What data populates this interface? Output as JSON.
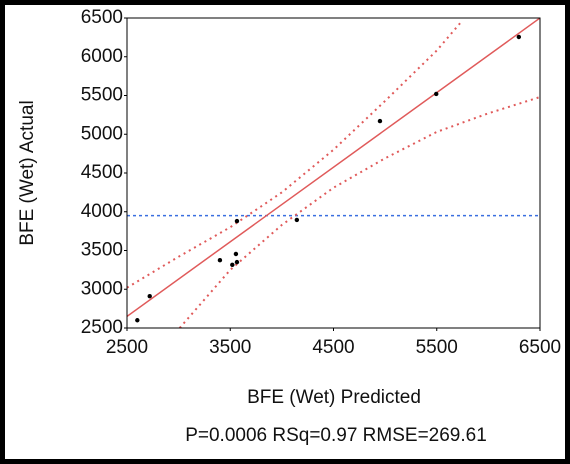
{
  "chart_data": {
    "type": "scatter",
    "xlabel": "BFE (Wet) Predicted",
    "ylabel": "BFE (Wet) Actual",
    "footer": "P=0.0006 RSq=0.97 RMSE=269.61",
    "x": [
      2600,
      2720,
      3400,
      3520,
      3565,
      3555,
      3565,
      4145,
      4950,
      5495,
      6295
    ],
    "values": [
      2600,
      2910,
      3375,
      3315,
      3350,
      3455,
      3880,
      3895,
      5170,
      5520,
      6255
    ],
    "color": "#000000",
    "fit_line": {
      "color": "#e05a5a",
      "x": [
        2500,
        6500
      ],
      "y": [
        2650,
        6500
      ]
    },
    "mean_line": {
      "color": "#3a6fe0",
      "y": 3950
    },
    "confidence_upper": {
      "color": "#e05a5a",
      "x": [
        2500,
        3000,
        3500,
        4000,
        4500,
        5000,
        5500,
        5750
      ],
      "y": [
        3020,
        3420,
        3800,
        4250,
        4800,
        5430,
        6080,
        6470
      ]
    },
    "confidence_lower": {
      "color": "#e05a5a",
      "x": [
        3010,
        3500,
        4000,
        4500,
        5000,
        5500,
        6000,
        6500
      ],
      "y": [
        2500,
        3250,
        3830,
        4310,
        4690,
        5030,
        5270,
        5480
      ]
    },
    "xlim": [
      2500,
      6500
    ],
    "xticks": [
      2500,
      3500,
      4500,
      5500,
      6500
    ],
    "ylim": [
      2500,
      6500
    ],
    "yticks": [
      2500,
      3000,
      3500,
      4000,
      4500,
      5000,
      5500,
      6000,
      6500
    ]
  }
}
